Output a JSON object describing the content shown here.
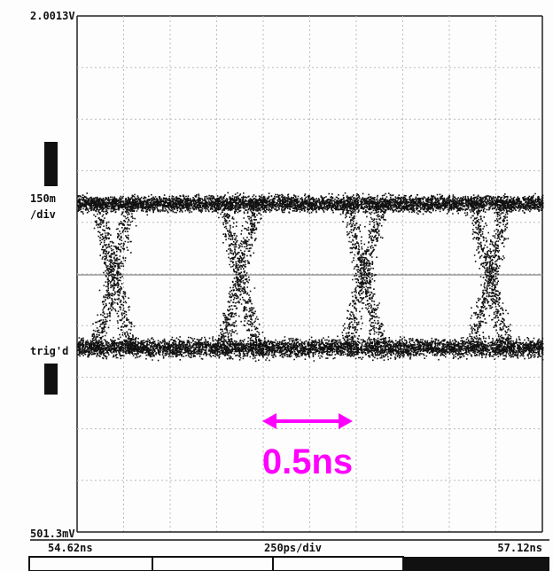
{
  "screen": {
    "top_level": "2.0013V",
    "scale": "150m",
    "scale_unit": "/div",
    "trigger": "trig'd",
    "bottom_level": "501.3mV",
    "time_start": "54.62ns",
    "time_scale": "250ps/div",
    "time_end": "57.12ns",
    "annotation": "0.5ns"
  }
}
